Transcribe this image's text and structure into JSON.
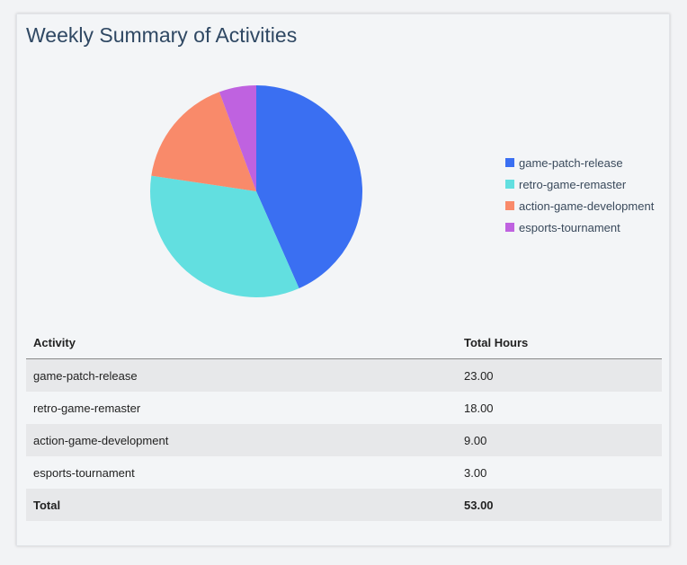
{
  "title": "Weekly Summary of Activities",
  "chart_data": {
    "type": "pie",
    "title": "Weekly Summary of Activities",
    "categories": [
      "game-patch-release",
      "retro-game-remaster",
      "action-game-development",
      "esports-tournament"
    ],
    "values": [
      23,
      18,
      9,
      3
    ],
    "colors": [
      "#3a6ff2",
      "#62dfe0",
      "#f98a6a",
      "#bf62e0"
    ],
    "legend_position": "right"
  },
  "table": {
    "headers": [
      "Activity",
      "Total Hours"
    ],
    "rows": [
      [
        "game-patch-release",
        "23.00"
      ],
      [
        "retro-game-remaster",
        "18.00"
      ],
      [
        "action-game-development",
        "9.00"
      ],
      [
        "esports-tournament",
        "3.00"
      ]
    ],
    "total": [
      "Total",
      "53.00"
    ]
  }
}
